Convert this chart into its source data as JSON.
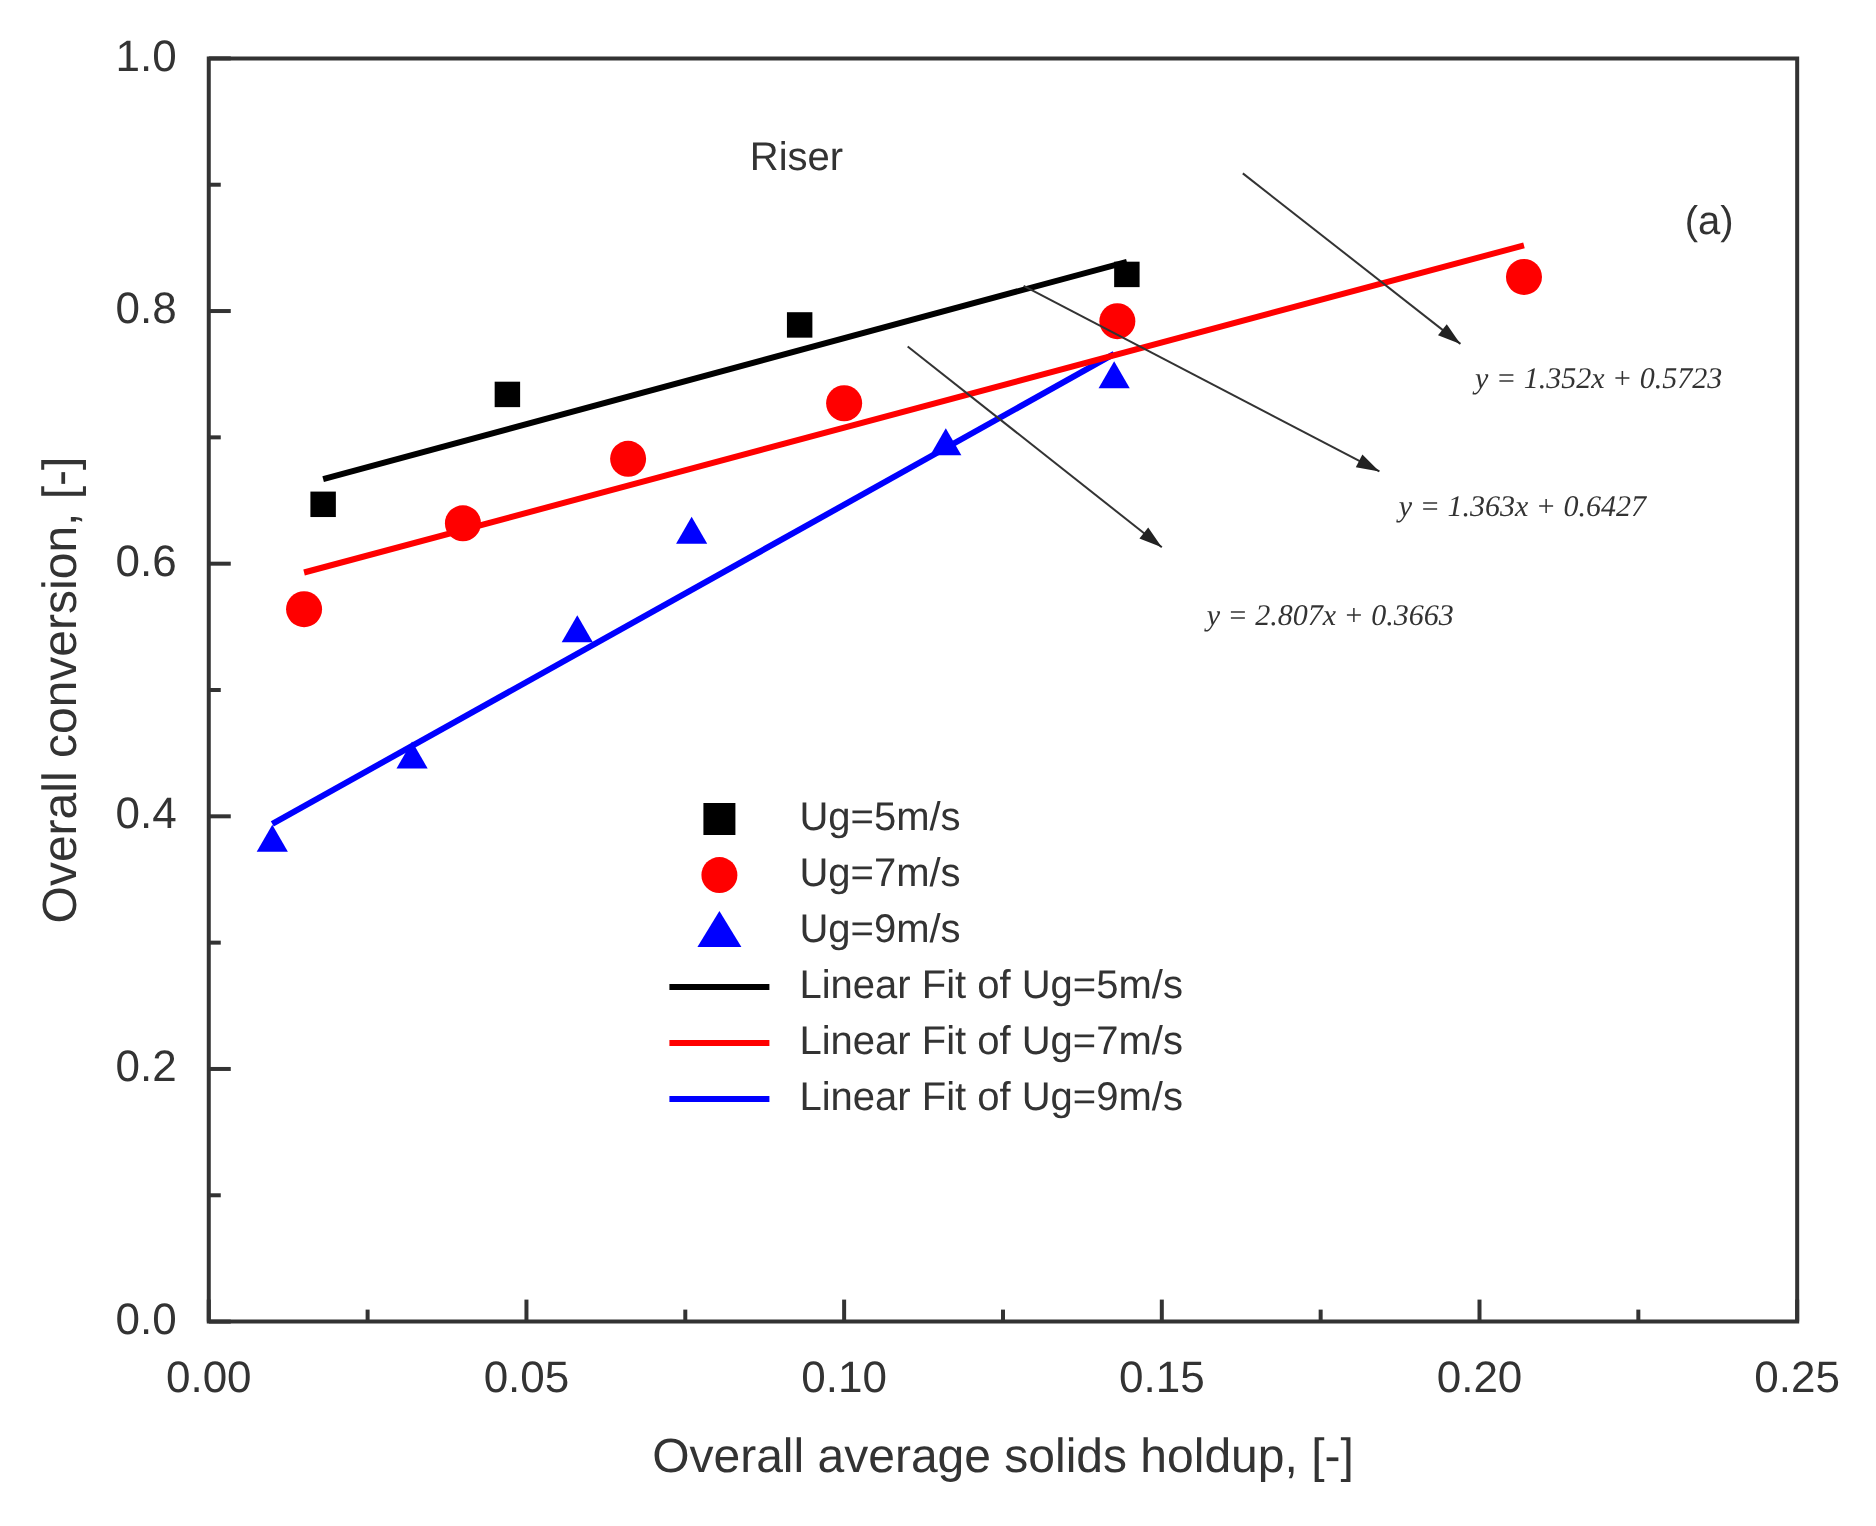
{
  "chart_data": {
    "type": "scatter",
    "xlabel": "Overall average solids holdup, [-]",
    "ylabel": "Overall conversion, [-]",
    "xlim": [
      0,
      0.25
    ],
    "ylim": [
      0,
      1.0
    ],
    "xticks": [
      {
        "value": 0,
        "label": "0.00"
      },
      {
        "value": 0.025,
        "label": null
      },
      {
        "value": 0.05,
        "label": "0.05"
      },
      {
        "value": 0.075,
        "label": null
      },
      {
        "value": 0.1,
        "label": "0.10"
      },
      {
        "value": 0.125,
        "label": null
      },
      {
        "value": 0.15,
        "label": "0.15"
      },
      {
        "value": 0.175,
        "label": null
      },
      {
        "value": 0.2,
        "label": "0.20"
      },
      {
        "value": 0.225,
        "label": null
      },
      {
        "value": 0.25,
        "label": "0.25"
      }
    ],
    "yticks": [
      {
        "value": 0,
        "label": "0.0"
      },
      {
        "value": 0.1,
        "label": null
      },
      {
        "value": 0.2,
        "label": "0.2"
      },
      {
        "value": 0.3,
        "label": null
      },
      {
        "value": 0.4,
        "label": "0.4"
      },
      {
        "value": 0.5,
        "label": null
      },
      {
        "value": 0.6,
        "label": "0.6"
      },
      {
        "value": 0.7,
        "label": null
      },
      {
        "value": 0.8,
        "label": "0.8"
      },
      {
        "value": 0.9,
        "label": null
      },
      {
        "value": 1.0,
        "label": "1.0"
      }
    ],
    "grid": false,
    "legend": "center",
    "series": [
      {
        "name": "Ug=5m/s",
        "type": "scatter",
        "marker": "square",
        "color": "#000000",
        "x": [
          0.018,
          0.047,
          0.093,
          0.1445
        ],
        "values": [
          0.647,
          0.734,
          0.789,
          0.829
        ]
      },
      {
        "name": "Ug=7m/s",
        "type": "scatter",
        "marker": "circle",
        "color": "#ff0000",
        "x": [
          0.015,
          0.04,
          0.066,
          0.1,
          0.143,
          0.207
        ],
        "values": [
          0.564,
          0.632,
          0.683,
          0.727,
          0.792,
          0.827
        ]
      },
      {
        "name": "Ug=9m/s",
        "type": "scatter",
        "marker": "triangle",
        "color": "#0000ff",
        "x": [
          0.01,
          0.032,
          0.058,
          0.076,
          0.116,
          0.1425
        ],
        "values": [
          0.379,
          0.445,
          0.545,
          0.623,
          0.693,
          0.746
        ]
      },
      {
        "name": "Linear Fit of Ug=5m/s",
        "type": "line",
        "marker": "none",
        "line_style": "solid",
        "color": "#000000",
        "x": [
          0.018,
          0.1445
        ],
        "values": [
          0.667,
          0.839
        ]
      },
      {
        "name": "Linear Fit of Ug=7m/s",
        "type": "line",
        "marker": "none",
        "line_style": "solid",
        "color": "#ff0000",
        "x": [
          0.015,
          0.207
        ],
        "values": [
          0.593,
          0.852
        ]
      },
      {
        "name": "Linear Fit of Ug=9m/s",
        "type": "line",
        "marker": "none",
        "line_style": "solid",
        "color": "#0000ff",
        "x": [
          0.01,
          0.1425
        ],
        "values": [
          0.394,
          0.766
        ]
      }
    ],
    "annotations": [
      "Riser",
      "(a)",
      "y = 1.352x + 0.5723",
      "y = 1.363x + 0.6427",
      "y = 2.807x + 0.3663"
    ]
  }
}
